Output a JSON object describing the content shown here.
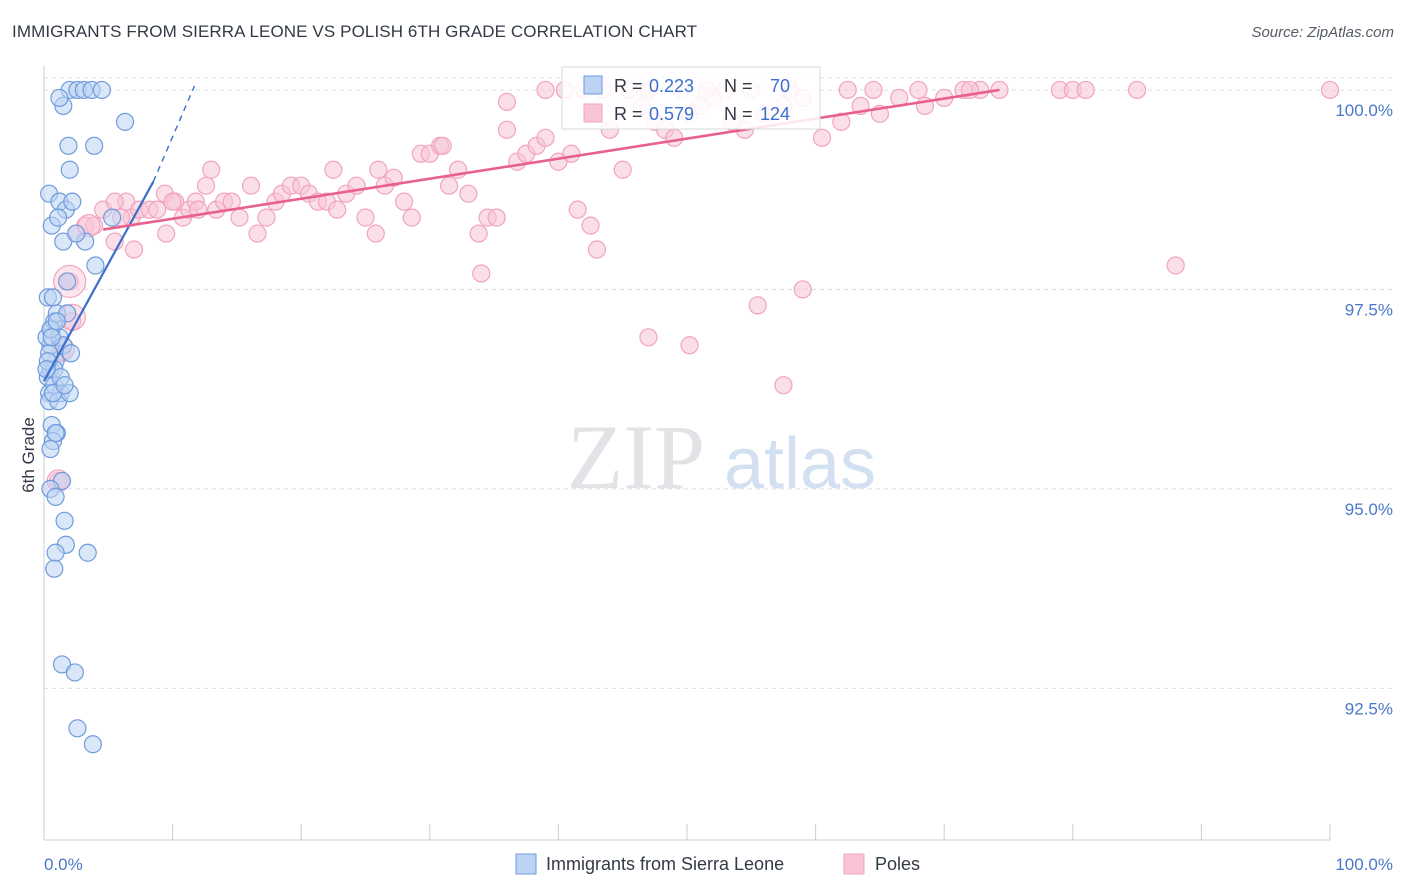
{
  "chart_data": {
    "type": "scatter",
    "title": "IMMIGRANTS FROM SIERRA LEONE VS POLISH 6TH GRADE CORRELATION CHART",
    "source": "Source: ZipAtlas.com",
    "xlabel": "",
    "ylabel": "6th Grade",
    "xlim": [
      0,
      100
    ],
    "ylim": [
      90.6,
      100.3
    ],
    "x_tick_labels": [
      "0.0%",
      "100.0%"
    ],
    "y_ticks": [
      {
        "value": 100.0,
        "label": "100.0%"
      },
      {
        "value": 97.5,
        "label": "97.5%"
      },
      {
        "value": 95.0,
        "label": "95.0%"
      },
      {
        "value": 92.5,
        "label": "92.5%"
      }
    ],
    "grid": true,
    "legend_position": "top-center",
    "watermark": "ZIPatlas",
    "series": [
      {
        "name": "Immigrants from Sierra Leone",
        "color": "#6f9bdc",
        "line_color": "#3a6fcc",
        "R": "0.223",
        "N": "70",
        "trend": {
          "x0": 0.0,
          "y0": 96.35,
          "x1": 8.5,
          "y1": 98.85,
          "dash_x1": 11.7,
          "dash_y1": 100.05
        },
        "points": [
          [
            0.3,
            96.4
          ],
          [
            0.4,
            96.2
          ],
          [
            0.5,
            96.8
          ],
          [
            0.2,
            96.9
          ],
          [
            0.6,
            97.0
          ],
          [
            0.8,
            97.1
          ],
          [
            1.0,
            97.2
          ],
          [
            0.3,
            97.4
          ],
          [
            0.7,
            97.4
          ],
          [
            1.2,
            96.9
          ],
          [
            1.5,
            96.8
          ],
          [
            1.8,
            97.2
          ],
          [
            2.1,
            96.7
          ],
          [
            0.5,
            96.5
          ],
          [
            0.9,
            96.6
          ],
          [
            1.3,
            96.2
          ],
          [
            0.4,
            96.1
          ],
          [
            0.8,
            96.3
          ],
          [
            1.1,
            96.1
          ],
          [
            2.0,
            96.2
          ],
          [
            0.6,
            95.8
          ],
          [
            1.0,
            95.7
          ],
          [
            0.7,
            95.6
          ],
          [
            1.4,
            95.1
          ],
          [
            0.5,
            95.0
          ],
          [
            0.9,
            94.9
          ],
          [
            1.6,
            94.6
          ],
          [
            1.7,
            94.3
          ],
          [
            0.9,
            94.2
          ],
          [
            3.4,
            94.2
          ],
          [
            0.8,
            94.0
          ],
          [
            1.4,
            92.8
          ],
          [
            2.4,
            92.7
          ],
          [
            2.6,
            92.0
          ],
          [
            3.8,
            91.8
          ],
          [
            0.4,
            98.7
          ],
          [
            1.2,
            98.6
          ],
          [
            1.7,
            98.5
          ],
          [
            2.2,
            98.6
          ],
          [
            0.6,
            98.3
          ],
          [
            1.5,
            98.1
          ],
          [
            3.2,
            98.1
          ],
          [
            4.0,
            97.8
          ],
          [
            5.3,
            98.4
          ],
          [
            2.0,
            99.0
          ],
          [
            1.9,
            99.3
          ],
          [
            3.9,
            99.3
          ],
          [
            2.0,
            100.0
          ],
          [
            2.6,
            100.0
          ],
          [
            3.1,
            100.0
          ],
          [
            3.7,
            100.0
          ],
          [
            4.5,
            100.0
          ],
          [
            1.5,
            99.8
          ],
          [
            1.2,
            99.9
          ],
          [
            6.3,
            99.6
          ],
          [
            0.5,
            97.0
          ],
          [
            0.4,
            96.7
          ],
          [
            0.8,
            96.5
          ],
          [
            1.0,
            97.1
          ],
          [
            1.3,
            96.4
          ],
          [
            0.6,
            96.9
          ],
          [
            0.3,
            96.6
          ],
          [
            0.9,
            95.7
          ],
          [
            2.5,
            98.2
          ],
          [
            1.1,
            98.4
          ],
          [
            1.8,
            97.6
          ],
          [
            0.7,
            96.2
          ],
          [
            0.5,
            95.5
          ],
          [
            1.6,
            96.3
          ],
          [
            0.2,
            96.5
          ]
        ]
      },
      {
        "name": "Poles",
        "color": "#f2a3bd",
        "line_color": "#e8608e",
        "R": "0.579",
        "N": "124",
        "trend": {
          "x0": 4.6,
          "y0": 98.25,
          "x1": 74.3,
          "y1": 100.0
        },
        "points": [
          [
            2.0,
            97.6
          ],
          [
            2.2,
            97.1
          ],
          [
            1.4,
            96.7
          ],
          [
            1.1,
            95.1
          ],
          [
            3.2,
            98.3
          ],
          [
            4.6,
            98.5
          ],
          [
            5.5,
            98.1
          ],
          [
            6.4,
            98.6
          ],
          [
            6.8,
            98.4
          ],
          [
            7.4,
            98.5
          ],
          [
            8.2,
            98.5
          ],
          [
            8.8,
            98.5
          ],
          [
            9.4,
            98.7
          ],
          [
            10.2,
            98.6
          ],
          [
            10.8,
            98.4
          ],
          [
            11.3,
            98.5
          ],
          [
            11.8,
            98.6
          ],
          [
            12.6,
            98.8
          ],
          [
            13.4,
            98.5
          ],
          [
            14.0,
            98.6
          ],
          [
            14.6,
            98.6
          ],
          [
            15.2,
            98.4
          ],
          [
            16.1,
            98.8
          ],
          [
            16.6,
            98.2
          ],
          [
            17.3,
            98.4
          ],
          [
            18.0,
            98.6
          ],
          [
            18.5,
            98.7
          ],
          [
            19.2,
            98.8
          ],
          [
            20.0,
            98.8
          ],
          [
            20.6,
            98.7
          ],
          [
            21.3,
            98.6
          ],
          [
            22.0,
            98.6
          ],
          [
            22.8,
            98.5
          ],
          [
            23.5,
            98.7
          ],
          [
            24.3,
            98.8
          ],
          [
            25.0,
            98.4
          ],
          [
            25.8,
            98.2
          ],
          [
            26.5,
            98.8
          ],
          [
            27.2,
            98.9
          ],
          [
            28.0,
            98.6
          ],
          [
            28.6,
            98.4
          ],
          [
            29.3,
            99.2
          ],
          [
            30.0,
            99.2
          ],
          [
            30.8,
            99.3
          ],
          [
            31.5,
            98.8
          ],
          [
            32.2,
            99.0
          ],
          [
            33.0,
            98.7
          ],
          [
            33.8,
            98.2
          ],
          [
            34.5,
            98.4
          ],
          [
            35.2,
            98.4
          ],
          [
            36.0,
            99.5
          ],
          [
            36.8,
            99.1
          ],
          [
            37.5,
            99.2
          ],
          [
            38.3,
            99.3
          ],
          [
            39.0,
            99.4
          ],
          [
            40.0,
            99.1
          ],
          [
            41.0,
            99.2
          ],
          [
            41.5,
            98.5
          ],
          [
            42.5,
            98.3
          ],
          [
            43.0,
            98.0
          ],
          [
            44.0,
            99.5
          ],
          [
            45.0,
            99.0
          ],
          [
            46.5,
            99.8
          ],
          [
            47.5,
            99.6
          ],
          [
            48.3,
            99.5
          ],
          [
            49.0,
            99.4
          ],
          [
            50.2,
            99.7
          ],
          [
            51.0,
            99.8
          ],
          [
            52.0,
            99.9
          ],
          [
            53.5,
            99.6
          ],
          [
            54.5,
            99.5
          ],
          [
            56.0,
            99.7
          ],
          [
            57.5,
            99.8
          ],
          [
            59.0,
            99.9
          ],
          [
            60.5,
            99.4
          ],
          [
            62.0,
            99.6
          ],
          [
            63.5,
            99.8
          ],
          [
            65.0,
            99.7
          ],
          [
            66.5,
            99.9
          ],
          [
            68.5,
            99.8
          ],
          [
            70.0,
            99.9
          ],
          [
            71.5,
            100.0
          ],
          [
            72.8,
            100.0
          ],
          [
            74.3,
            100.0
          ],
          [
            34.0,
            97.7
          ],
          [
            47.0,
            96.9
          ],
          [
            50.2,
            96.8
          ],
          [
            55.5,
            97.3
          ],
          [
            59.0,
            97.5
          ],
          [
            57.5,
            96.3
          ],
          [
            88.0,
            97.8
          ],
          [
            85.0,
            100.0
          ],
          [
            100.0,
            100.0
          ],
          [
            79.0,
            100.0
          ],
          [
            80.0,
            100.0
          ],
          [
            81.0,
            100.0
          ],
          [
            72.0,
            100.0
          ],
          [
            68.0,
            100.0
          ],
          [
            64.5,
            100.0
          ],
          [
            62.5,
            100.0
          ],
          [
            58.0,
            100.0
          ],
          [
            55.0,
            100.0
          ],
          [
            53.0,
            100.0
          ],
          [
            51.5,
            100.0
          ],
          [
            49.5,
            100.0
          ],
          [
            47.0,
            100.0
          ],
          [
            45.5,
            100.0
          ],
          [
            43.5,
            100.0
          ],
          [
            42.0,
            100.0
          ],
          [
            40.5,
            100.0
          ],
          [
            39.0,
            100.0
          ],
          [
            36.0,
            99.85
          ],
          [
            31.0,
            99.3
          ],
          [
            26.0,
            99.0
          ],
          [
            22.5,
            99.0
          ],
          [
            13.0,
            99.0
          ],
          [
            9.5,
            98.2
          ],
          [
            7.0,
            98.0
          ],
          [
            10.0,
            98.6
          ],
          [
            12.0,
            98.5
          ],
          [
            5.5,
            98.6
          ],
          [
            3.9,
            98.3
          ],
          [
            6.0,
            98.4
          ],
          [
            2.5,
            98.2
          ]
        ]
      }
    ]
  },
  "legend": {
    "r_label": "R =",
    "n_label": "N ="
  }
}
